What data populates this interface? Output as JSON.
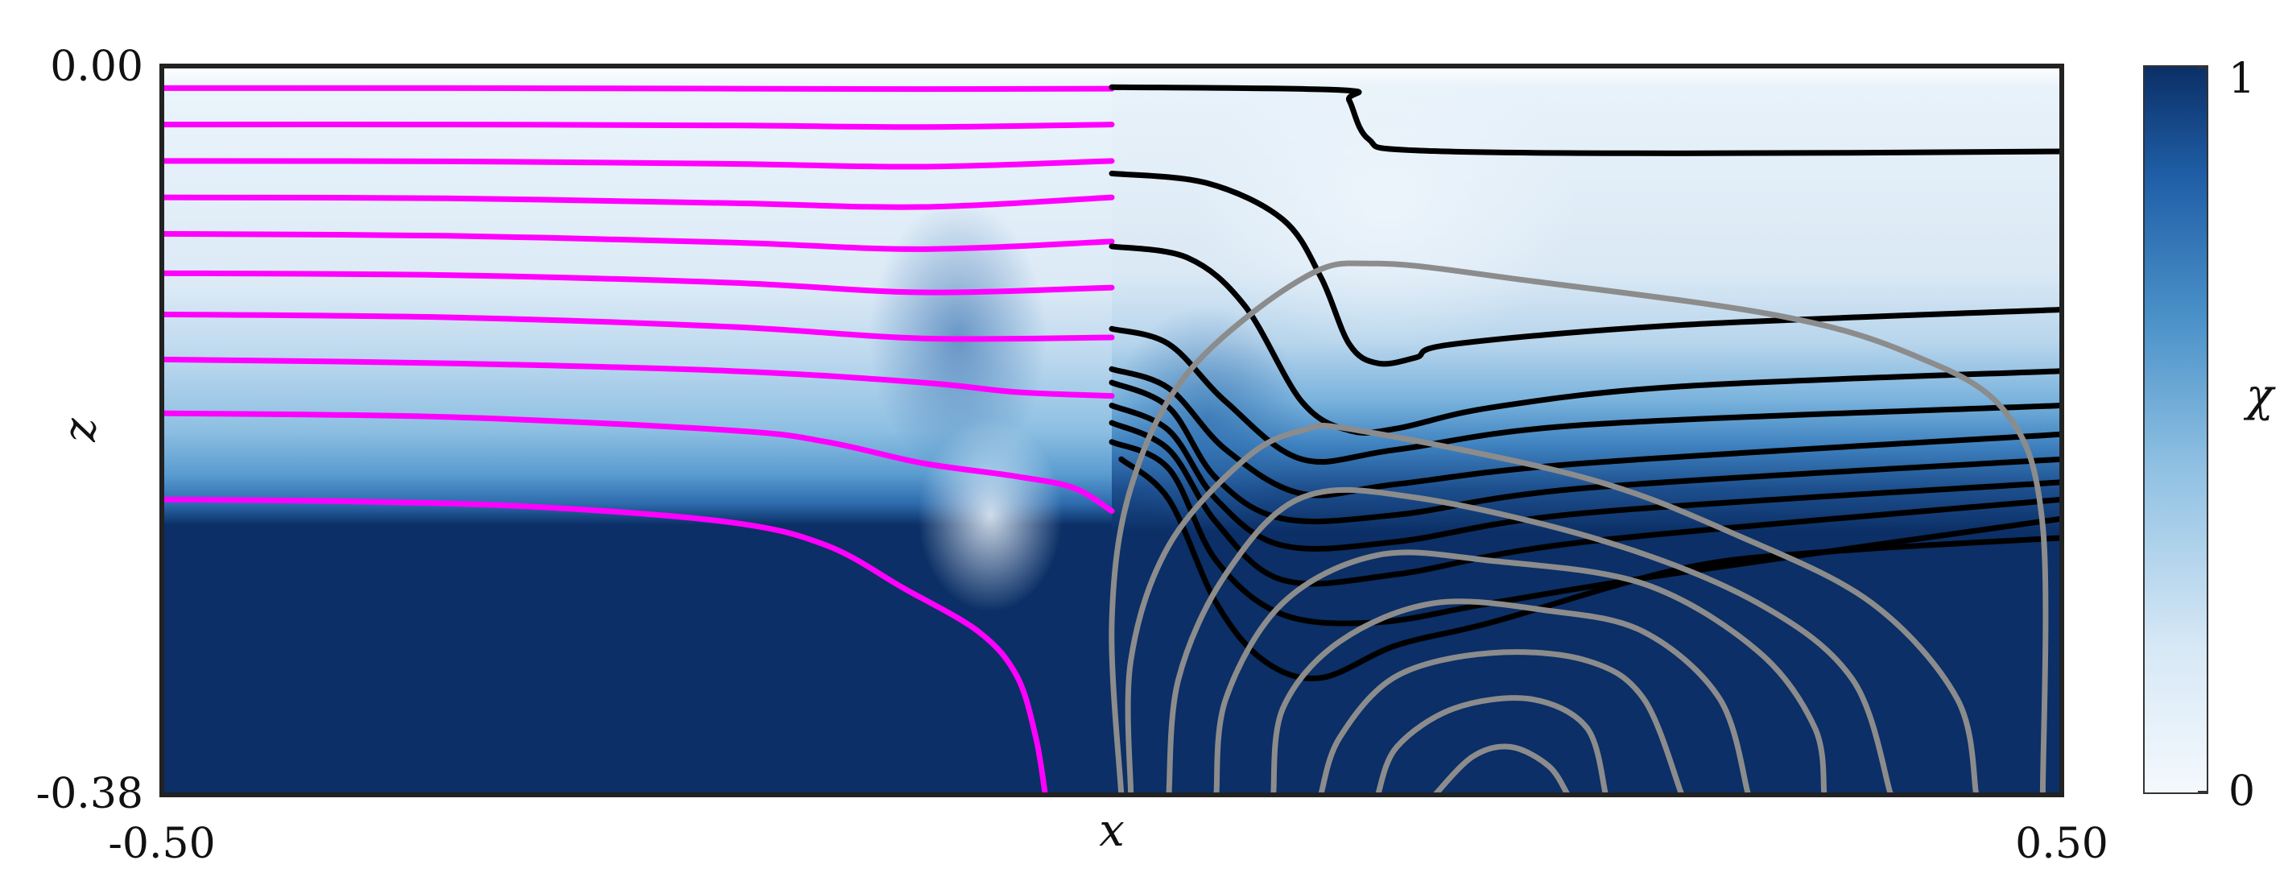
{
  "chart_data": {
    "type": "heatmap",
    "xlabel": "x",
    "ylabel": "z",
    "xlim": [
      -0.5,
      0.5
    ],
    "ylim": [
      -0.38,
      0.0
    ],
    "x_tick_labels": [
      "-0.50",
      "0.50"
    ],
    "y_tick_labels": [
      "0.00",
      "-0.38"
    ],
    "colorbar": {
      "label": "χ",
      "range": [
        0,
        1
      ],
      "tick_labels": [
        "0",
        "1"
      ],
      "low_color": "#f4f9fd",
      "high_color": "#0b2f66"
    },
    "series": [
      {
        "color": "#ff00ff",
        "region": "x < 0",
        "curves": [
          [
            [
              -0.5,
              -0.0115
            ],
            [
              -0.35,
              -0.0115
            ],
            [
              -0.2,
              -0.0118
            ],
            [
              -0.1,
              -0.012
            ],
            [
              0.0,
              -0.0118
            ]
          ],
          [
            [
              -0.5,
              -0.0305
            ],
            [
              -0.35,
              -0.0305
            ],
            [
              -0.2,
              -0.031
            ],
            [
              -0.1,
              -0.0318
            ],
            [
              0.0,
              -0.0305
            ]
          ],
          [
            [
              -0.5,
              -0.0495
            ],
            [
              -0.35,
              -0.0497
            ],
            [
              -0.2,
              -0.051
            ],
            [
              -0.1,
              -0.0525
            ],
            [
              0.0,
              -0.0495
            ]
          ],
          [
            [
              -0.5,
              -0.0685
            ],
            [
              -0.35,
              -0.069
            ],
            [
              -0.2,
              -0.0715
            ],
            [
              -0.1,
              -0.0735
            ],
            [
              0.0,
              -0.0685
            ]
          ],
          [
            [
              -0.5,
              -0.0875
            ],
            [
              -0.35,
              -0.0885
            ],
            [
              -0.2,
              -0.092
            ],
            [
              -0.1,
              -0.0955
            ],
            [
              0.0,
              -0.0915
            ]
          ],
          [
            [
              -0.5,
              -0.108
            ],
            [
              -0.35,
              -0.109
            ],
            [
              -0.2,
              -0.113
            ],
            [
              -0.1,
              -0.118
            ],
            [
              0.0,
              -0.1155
            ]
          ],
          [
            [
              -0.5,
              -0.1295
            ],
            [
              -0.35,
              -0.131
            ],
            [
              -0.2,
              -0.136
            ],
            [
              -0.1,
              -0.142
            ],
            [
              0.0,
              -0.1415
            ]
          ],
          [
            [
              -0.5,
              -0.153
            ],
            [
              -0.35,
              -0.155
            ],
            [
              -0.2,
              -0.159
            ],
            [
              -0.1,
              -0.165
            ],
            [
              -0.05,
              -0.17
            ],
            [
              0.0,
              -0.172
            ]
          ],
          [
            [
              -0.5,
              -0.181
            ],
            [
              -0.35,
              -0.183
            ],
            [
              -0.2,
              -0.19
            ],
            [
              -0.15,
              -0.196
            ],
            [
              -0.1,
              -0.207
            ],
            [
              -0.05,
              -0.214
            ],
            [
              -0.02,
              -0.22
            ],
            [
              0.0,
              -0.232
            ]
          ],
          [
            [
              -0.5,
              -0.226
            ],
            [
              -0.4,
              -0.227
            ],
            [
              -0.3,
              -0.23
            ],
            [
              -0.2,
              -0.238
            ],
            [
              -0.15,
              -0.25
            ],
            [
              -0.11,
              -0.272
            ],
            [
              -0.07,
              -0.295
            ],
            [
              -0.05,
              -0.318
            ],
            [
              -0.04,
              -0.35
            ],
            [
              -0.035,
              -0.38
            ]
          ]
        ]
      },
      {
        "color": "#000000",
        "region": "x > 0",
        "curves": [
          [
            [
              0.0,
              -0.011
            ],
            [
              0.12,
              -0.0125
            ],
            [
              0.125,
              -0.018
            ],
            [
              0.135,
              -0.038
            ],
            [
              0.16,
              -0.044
            ],
            [
              0.3,
              -0.0455
            ],
            [
              0.5,
              -0.0445
            ]
          ],
          [
            [
              0.0,
              -0.056
            ],
            [
              0.05,
              -0.061
            ],
            [
              0.09,
              -0.08
            ],
            [
              0.11,
              -0.11
            ],
            [
              0.125,
              -0.145
            ],
            [
              0.14,
              -0.155
            ],
            [
              0.16,
              -0.152
            ],
            [
              0.18,
              -0.145
            ],
            [
              0.3,
              -0.135
            ],
            [
              0.5,
              -0.127
            ]
          ],
          [
            [
              0.0,
              -0.094
            ],
            [
              0.04,
              -0.1
            ],
            [
              0.07,
              -0.125
            ],
            [
              0.1,
              -0.175
            ],
            [
              0.125,
              -0.19
            ],
            [
              0.15,
              -0.189
            ],
            [
              0.2,
              -0.178
            ],
            [
              0.3,
              -0.167
            ],
            [
              0.5,
              -0.159
            ]
          ],
          [
            [
              0.0,
              -0.137
            ],
            [
              0.03,
              -0.145
            ],
            [
              0.06,
              -0.175
            ],
            [
              0.1,
              -0.205
            ],
            [
              0.15,
              -0.2
            ],
            [
              0.25,
              -0.187
            ],
            [
              0.5,
              -0.177
            ]
          ],
          [
            [
              0.0,
              -0.158
            ],
            [
              0.03,
              -0.168
            ],
            [
              0.06,
              -0.2
            ],
            [
              0.1,
              -0.223
            ],
            [
              0.15,
              -0.218
            ],
            [
              0.25,
              -0.207
            ],
            [
              0.5,
              -0.192
            ]
          ],
          [
            [
              0.0,
              -0.165
            ],
            [
              0.03,
              -0.178
            ],
            [
              0.055,
              -0.215
            ],
            [
              0.09,
              -0.236
            ],
            [
              0.15,
              -0.234
            ],
            [
              0.25,
              -0.22
            ],
            [
              0.5,
              -0.205
            ]
          ],
          [
            [
              0.0,
              -0.177
            ],
            [
              0.03,
              -0.19
            ],
            [
              0.055,
              -0.226
            ],
            [
              0.09,
              -0.25
            ],
            [
              0.15,
              -0.248
            ],
            [
              0.25,
              -0.233
            ],
            [
              0.5,
              -0.217
            ]
          ],
          [
            [
              0.0,
              -0.186
            ],
            [
              0.03,
              -0.2
            ],
            [
              0.055,
              -0.238
            ],
            [
              0.09,
              -0.268
            ],
            [
              0.15,
              -0.265
            ],
            [
              0.25,
              -0.248
            ],
            [
              0.5,
              -0.226
            ]
          ],
          [
            [
              0.0,
              -0.196
            ],
            [
              0.03,
              -0.21
            ],
            [
              0.055,
              -0.258
            ],
            [
              0.09,
              -0.286
            ],
            [
              0.14,
              -0.29
            ],
            [
              0.2,
              -0.28
            ],
            [
              0.3,
              -0.264
            ],
            [
              0.5,
              -0.236
            ]
          ],
          [
            [
              0.005,
              -0.205
            ],
            [
              0.03,
              -0.226
            ],
            [
              0.055,
              -0.28
            ],
            [
              0.08,
              -0.31
            ],
            [
              0.11,
              -0.319
            ],
            [
              0.15,
              -0.302
            ],
            [
              0.2,
              -0.29
            ],
            [
              0.3,
              -0.262
            ],
            [
              0.38,
              -0.253
            ],
            [
              0.5,
              -0.246
            ]
          ]
        ]
      },
      {
        "color": "#8c8c8c",
        "region": "x > 0",
        "curves": [
          [
            [
              0.005,
              -0.38
            ],
            [
              0.0,
              -0.29
            ],
            [
              0.01,
              -0.22
            ],
            [
              0.04,
              -0.16
            ],
            [
              0.1,
              -0.111
            ],
            [
              0.14,
              -0.103
            ],
            [
              0.22,
              -0.112
            ],
            [
              0.35,
              -0.13
            ],
            [
              0.42,
              -0.15
            ],
            [
              0.47,
              -0.18
            ],
            [
              0.49,
              -0.24
            ],
            [
              0.49,
              -0.38
            ]
          ],
          [
            [
              0.01,
              -0.38
            ],
            [
              0.01,
              -0.31
            ],
            [
              0.03,
              -0.25
            ],
            [
              0.07,
              -0.205
            ],
            [
              0.1,
              -0.19
            ],
            [
              0.13,
              -0.19
            ],
            [
              0.25,
              -0.215
            ],
            [
              0.33,
              -0.245
            ],
            [
              0.4,
              -0.28
            ],
            [
              0.445,
              -0.33
            ],
            [
              0.455,
              -0.38
            ]
          ],
          [
            [
              0.03,
              -0.38
            ],
            [
              0.035,
              -0.32
            ],
            [
              0.06,
              -0.265
            ],
            [
              0.1,
              -0.225
            ],
            [
              0.16,
              -0.225
            ],
            [
              0.26,
              -0.248
            ],
            [
              0.34,
              -0.28
            ],
            [
              0.39,
              -0.32
            ],
            [
              0.41,
              -0.38
            ]
          ],
          [
            [
              0.055,
              -0.38
            ],
            [
              0.06,
              -0.33
            ],
            [
              0.09,
              -0.28
            ],
            [
              0.14,
              -0.255
            ],
            [
              0.2,
              -0.258
            ],
            [
              0.28,
              -0.27
            ],
            [
              0.34,
              -0.305
            ],
            [
              0.37,
              -0.345
            ],
            [
              0.375,
              -0.38
            ]
          ],
          [
            [
              0.085,
              -0.38
            ],
            [
              0.09,
              -0.335
            ],
            [
              0.12,
              -0.3
            ],
            [
              0.17,
              -0.28
            ],
            [
              0.23,
              -0.284
            ],
            [
              0.28,
              -0.295
            ],
            [
              0.32,
              -0.33
            ],
            [
              0.335,
              -0.38
            ]
          ],
          [
            [
              0.11,
              -0.38
            ],
            [
              0.12,
              -0.35
            ],
            [
              0.15,
              -0.318
            ],
            [
              0.2,
              -0.306
            ],
            [
              0.25,
              -0.31
            ],
            [
              0.28,
              -0.33
            ],
            [
              0.3,
              -0.38
            ]
          ],
          [
            [
              0.14,
              -0.38
            ],
            [
              0.15,
              -0.355
            ],
            [
              0.18,
              -0.335
            ],
            [
              0.22,
              -0.33
            ],
            [
              0.25,
              -0.345
            ],
            [
              0.26,
              -0.38
            ]
          ],
          [
            [
              0.17,
              -0.38
            ],
            [
              0.19,
              -0.36
            ],
            [
              0.21,
              -0.355
            ],
            [
              0.23,
              -0.365
            ],
            [
              0.24,
              -0.38
            ]
          ]
        ]
      }
    ]
  }
}
